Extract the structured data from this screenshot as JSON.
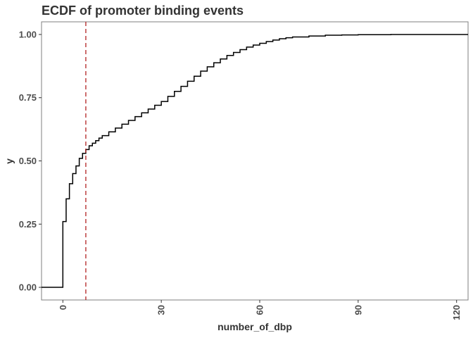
{
  "chart_data": {
    "type": "line",
    "title": "ECDF of promoter binding events",
    "xlabel": "number_of_dbp",
    "ylabel": "y",
    "xlim": [
      -6.5,
      123.5
    ],
    "ylim": [
      -0.05,
      1.05
    ],
    "x_ticks": [
      0,
      30,
      60,
      90,
      120
    ],
    "x_tick_labels": [
      "0",
      "30",
      "60",
      "90",
      "120"
    ],
    "y_ticks": [
      0,
      0.25,
      0.5,
      0.75,
      1
    ],
    "y_tick_labels": [
      "0.00",
      "0.25",
      "0.50",
      "0.75",
      "1.00"
    ],
    "x_tick_label_rotation": "vertical",
    "grid": false,
    "legend": "none",
    "step_color": "#000000",
    "vline": {
      "x": 7,
      "color": "#b22222",
      "style": "dashed"
    },
    "series": [
      {
        "step": "post",
        "x": [
          -6.5,
          0,
          1,
          2,
          3,
          4,
          5,
          6,
          7,
          8,
          9,
          10,
          11,
          12,
          14,
          16,
          18,
          20,
          22,
          24,
          26,
          28,
          30,
          32,
          34,
          36,
          38,
          40,
          42,
          44,
          46,
          48,
          50,
          52,
          54,
          56,
          58,
          60,
          62,
          64,
          66,
          68,
          70,
          75,
          80,
          85,
          90,
          100,
          110,
          123.5
        ],
        "y": [
          0,
          0.26,
          0.35,
          0.41,
          0.45,
          0.48,
          0.51,
          0.53,
          0.545,
          0.56,
          0.57,
          0.58,
          0.59,
          0.6,
          0.615,
          0.63,
          0.645,
          0.66,
          0.675,
          0.69,
          0.705,
          0.72,
          0.735,
          0.755,
          0.775,
          0.795,
          0.815,
          0.835,
          0.855,
          0.872,
          0.888,
          0.903,
          0.917,
          0.929,
          0.94,
          0.95,
          0.958,
          0.965,
          0.972,
          0.978,
          0.983,
          0.987,
          0.99,
          0.994,
          0.997,
          0.998,
          0.999,
          1.0,
          1.0,
          1.0
        ]
      }
    ]
  }
}
